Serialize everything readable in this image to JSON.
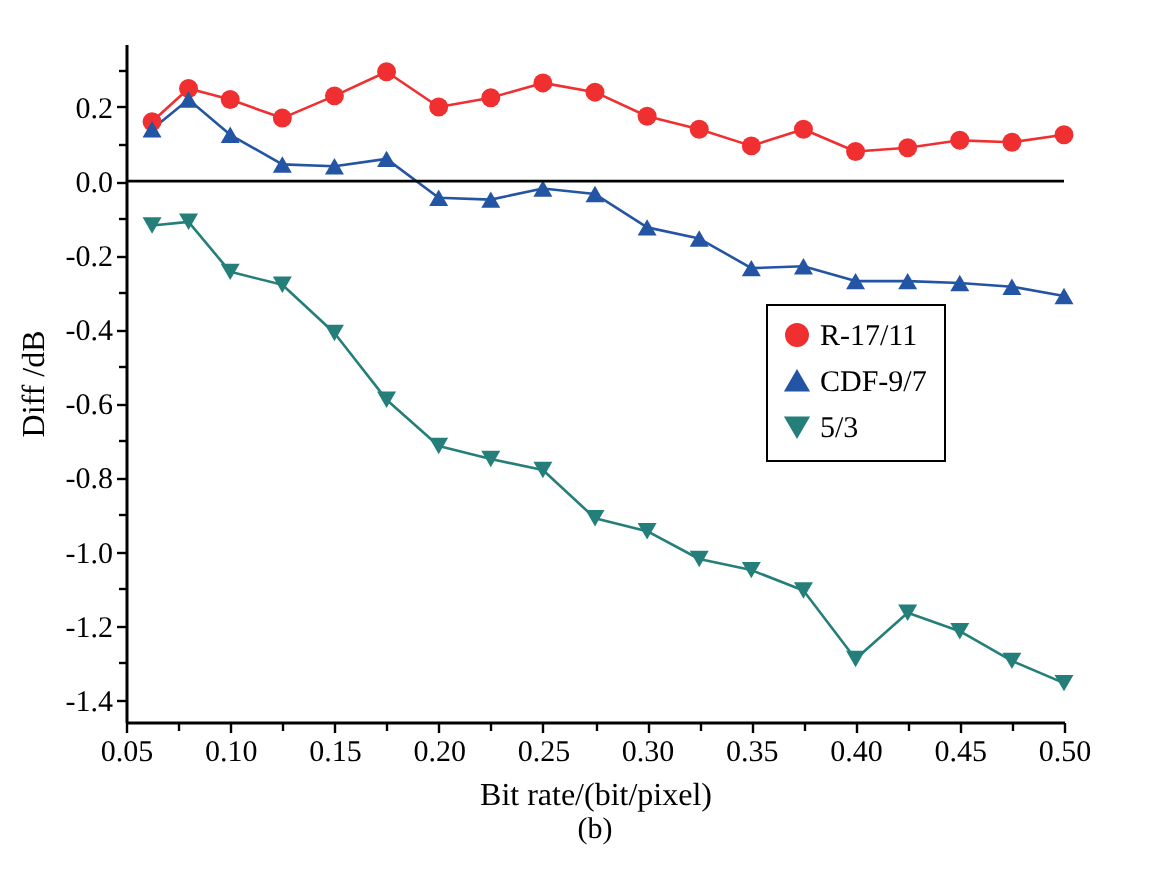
{
  "chart_data": {
    "type": "line",
    "xlabel": "Bit rate/(bit/pixel)",
    "ylabel": "Diff /dB",
    "annotations": [
      "(b)"
    ],
    "x": [
      0.0625,
      0.08,
      0.1,
      0.125,
      0.15,
      0.175,
      0.2,
      0.225,
      0.25,
      0.275,
      0.3,
      0.325,
      0.35,
      0.375,
      0.4,
      0.425,
      0.45,
      0.475,
      0.5
    ],
    "series": [
      {
        "name": "R-17/11",
        "color": "#f03030",
        "marker": "circle",
        "values": [
          0.16,
          0.25,
          0.22,
          0.17,
          0.23,
          0.295,
          0.2,
          0.225,
          0.265,
          0.24,
          0.175,
          0.14,
          0.095,
          0.14,
          0.08,
          0.09,
          0.11,
          0.105,
          0.125
        ]
      },
      {
        "name": "CDF-9/7",
        "color": "#2455a4",
        "marker": "triangle",
        "values": [
          0.14,
          0.22,
          0.125,
          0.045,
          0.04,
          0.06,
          -0.045,
          -0.05,
          -0.02,
          -0.035,
          -0.125,
          -0.155,
          -0.235,
          -0.23,
          -0.27,
          -0.27,
          -0.275,
          -0.285,
          -0.31
        ]
      },
      {
        "name": "5/3",
        "color": "#247f7a",
        "marker": "triangle-down",
        "values": [
          -0.12,
          -0.11,
          -0.245,
          -0.28,
          -0.41,
          -0.59,
          -0.715,
          -0.75,
          -0.78,
          -0.91,
          -0.945,
          -1.02,
          -1.05,
          -1.105,
          -1.29,
          -1.165,
          -1.215,
          -1.295,
          -1.355
        ]
      }
    ],
    "xlim": [
      0.05,
      0.5
    ],
    "ylim": [
      -1.46,
      0.37
    ],
    "xticks": [
      {
        "value": 0.05,
        "label": "0.05"
      },
      {
        "value": 0.075,
        "label": null
      },
      {
        "value": 0.1,
        "label": "0.10"
      },
      {
        "value": 0.125,
        "label": null
      },
      {
        "value": 0.15,
        "label": "0.15"
      },
      {
        "value": 0.175,
        "label": null
      },
      {
        "value": 0.2,
        "label": "0.20"
      },
      {
        "value": 0.225,
        "label": null
      },
      {
        "value": 0.25,
        "label": "0.25"
      },
      {
        "value": 0.275,
        "label": null
      },
      {
        "value": 0.3,
        "label": "0.30"
      },
      {
        "value": 0.325,
        "label": null
      },
      {
        "value": 0.35,
        "label": "0.35"
      },
      {
        "value": 0.375,
        "label": null
      },
      {
        "value": 0.4,
        "label": "0.40"
      },
      {
        "value": 0.425,
        "label": null
      },
      {
        "value": 0.45,
        "label": "0.45"
      },
      {
        "value": 0.475,
        "label": null
      },
      {
        "value": 0.5,
        "label": "0.50"
      }
    ],
    "yticks": [
      {
        "value": -1.4,
        "label": "-1.4"
      },
      {
        "value": -1.3,
        "label": null
      },
      {
        "value": -1.2,
        "label": "-1.2"
      },
      {
        "value": -1.1,
        "label": null
      },
      {
        "value": -1,
        "label": "-1.0"
      },
      {
        "value": -0.9,
        "label": null
      },
      {
        "value": -0.8,
        "label": "-0.8"
      },
      {
        "value": -0.7,
        "label": null
      },
      {
        "value": -0.6,
        "label": "-0.6"
      },
      {
        "value": -0.5,
        "label": null
      },
      {
        "value": -0.4,
        "label": "-0.4"
      },
      {
        "value": -0.3,
        "label": null
      },
      {
        "value": -0.2,
        "label": "-0.2"
      },
      {
        "value": -0.1,
        "label": null
      },
      {
        "value": 0,
        "label": "0.0"
      },
      {
        "value": 0.1,
        "label": null
      },
      {
        "value": 0.2,
        "label": "0.2"
      },
      {
        "value": 0.3,
        "label": null
      }
    ],
    "ref_lines": [
      {
        "axis": "y",
        "value": 0,
        "color": "#000000"
      }
    ],
    "grid": false,
    "legend": "right"
  }
}
